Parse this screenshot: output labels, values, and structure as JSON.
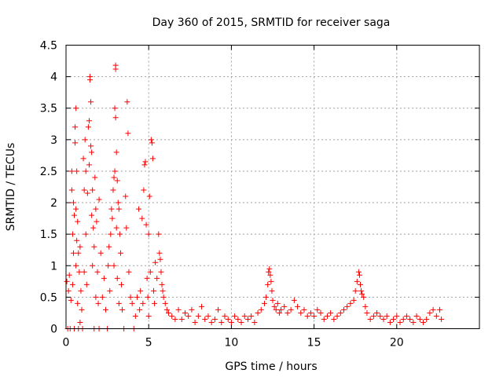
{
  "chart_data": {
    "type": "scatter",
    "title": "Day 360 of 2015, SRMTID for receiver saga",
    "xlabel": "GPS time / hours",
    "ylabel": "SRMTID / TECUs",
    "xlim": [
      0,
      25
    ],
    "ylim": [
      0,
      4.5
    ],
    "x_ticks": [
      0,
      5,
      10,
      15,
      20
    ],
    "x_tick_labels": [
      "0",
      "5",
      "10",
      "15",
      "20"
    ],
    "y_ticks": [
      0,
      0.5,
      1,
      1.5,
      2,
      2.5,
      3,
      3.5,
      4,
      4.5
    ],
    "y_tick_labels": [
      "0",
      "0.5",
      "1",
      "1.5",
      "2",
      "2.5",
      "3",
      "3.5",
      "4",
      "4.5"
    ],
    "grid": true,
    "marker": "+",
    "series": [
      {
        "name": "SRMTID",
        "color": "#ff0000",
        "points": [
          [
            0.05,
            0.75
          ],
          [
            0.1,
            0.0
          ],
          [
            0.15,
            0.6
          ],
          [
            0.2,
            0.85
          ],
          [
            0.25,
            0.0
          ],
          [
            0.3,
            0.45
          ],
          [
            0.35,
            2.5
          ],
          [
            0.35,
            2.2
          ],
          [
            0.4,
            1.5
          ],
          [
            0.4,
            0.7
          ],
          [
            0.45,
            2.0
          ],
          [
            0.45,
            1.2
          ],
          [
            0.5,
            1.8
          ],
          [
            0.5,
            0.0
          ],
          [
            0.55,
            3.2
          ],
          [
            0.55,
            2.95
          ],
          [
            0.6,
            3.5
          ],
          [
            0.6,
            1.9
          ],
          [
            0.6,
            1.0
          ],
          [
            0.65,
            2.5
          ],
          [
            0.65,
            1.4
          ],
          [
            0.7,
            1.7
          ],
          [
            0.7,
            0.4
          ],
          [
            0.75,
            1.2
          ],
          [
            0.75,
            0.0
          ],
          [
            0.8,
            0.9
          ],
          [
            0.85,
            1.3
          ],
          [
            0.85,
            0.1
          ],
          [
            0.9,
            0.6
          ],
          [
            0.95,
            0.3
          ],
          [
            1.0,
            0.0
          ],
          [
            1.05,
            2.7
          ],
          [
            1.1,
            2.2
          ],
          [
            1.1,
            0.9
          ],
          [
            1.15,
            3.0
          ],
          [
            1.2,
            2.5
          ],
          [
            1.2,
            1.5
          ],
          [
            1.25,
            0.7
          ],
          [
            1.3,
            2.15
          ],
          [
            1.35,
            3.2
          ],
          [
            1.4,
            3.3
          ],
          [
            1.4,
            2.6
          ],
          [
            1.45,
            4.0
          ],
          [
            1.45,
            3.95
          ],
          [
            1.5,
            3.6
          ],
          [
            1.5,
            2.9
          ],
          [
            1.55,
            2.8
          ],
          [
            1.55,
            1.8
          ],
          [
            1.6,
            2.2
          ],
          [
            1.6,
            1.0
          ],
          [
            1.65,
            1.6
          ],
          [
            1.7,
            1.3
          ],
          [
            1.7,
            0.0
          ],
          [
            1.75,
            2.4
          ],
          [
            1.8,
            1.9
          ],
          [
            1.8,
            0.5
          ],
          [
            1.85,
            1.7
          ],
          [
            1.9,
            0.9
          ],
          [
            1.95,
            0.4
          ],
          [
            2.0,
            2.05
          ],
          [
            2.0,
            0.0
          ],
          [
            2.1,
            1.2
          ],
          [
            2.2,
            0.5
          ],
          [
            2.3,
            0.8
          ],
          [
            2.4,
            0.3
          ],
          [
            2.5,
            0.0
          ],
          [
            2.55,
            1.0
          ],
          [
            2.6,
            1.3
          ],
          [
            2.65,
            0.6
          ],
          [
            2.7,
            1.5
          ],
          [
            2.75,
            1.9
          ],
          [
            2.8,
            1.75
          ],
          [
            2.85,
            2.2
          ],
          [
            2.9,
            2.4
          ],
          [
            2.9,
            1.0
          ],
          [
            2.95,
            2.5
          ],
          [
            2.95,
            3.5
          ],
          [
            3.0,
            4.18
          ],
          [
            3.0,
            4.12
          ],
          [
            3.0,
            3.35
          ],
          [
            3.05,
            2.8
          ],
          [
            3.05,
            1.6
          ],
          [
            3.1,
            2.35
          ],
          [
            3.1,
            0.8
          ],
          [
            3.15,
            2.0
          ],
          [
            3.2,
            1.9
          ],
          [
            3.2,
            0.4
          ],
          [
            3.25,
            1.5
          ],
          [
            3.3,
            1.2
          ],
          [
            3.35,
            0.7
          ],
          [
            3.4,
            0.3
          ],
          [
            3.5,
            0.0
          ],
          [
            3.6,
            2.1
          ],
          [
            3.65,
            1.6
          ],
          [
            3.7,
            3.6
          ],
          [
            3.75,
            3.1
          ],
          [
            3.8,
            0.9
          ],
          [
            3.9,
            0.5
          ],
          [
            4.0,
            0.4
          ],
          [
            4.1,
            0.0
          ],
          [
            4.2,
            0.2
          ],
          [
            4.3,
            0.5
          ],
          [
            4.4,
            1.9
          ],
          [
            4.45,
            0.3
          ],
          [
            4.5,
            0.6
          ],
          [
            4.6,
            1.75
          ],
          [
            4.65,
            0.4
          ],
          [
            4.7,
            2.2
          ],
          [
            4.75,
            2.6
          ],
          [
            4.8,
            2.65
          ],
          [
            4.85,
            1.65
          ],
          [
            4.9,
            0.8
          ],
          [
            4.95,
            0.5
          ],
          [
            5.0,
            1.5
          ],
          [
            5.0,
            0.2
          ],
          [
            5.05,
            2.1
          ],
          [
            5.1,
            0.9
          ],
          [
            5.15,
            3.0
          ],
          [
            5.2,
            2.95
          ],
          [
            5.25,
            2.7
          ],
          [
            5.3,
            0.6
          ],
          [
            5.35,
            0.4
          ],
          [
            5.4,
            1.05
          ],
          [
            5.5,
            0.8
          ],
          [
            5.6,
            1.5
          ],
          [
            5.65,
            1.2
          ],
          [
            5.7,
            1.1
          ],
          [
            5.75,
            0.9
          ],
          [
            5.8,
            0.7
          ],
          [
            5.85,
            0.6
          ],
          [
            5.9,
            0.5
          ],
          [
            6.0,
            0.4
          ],
          [
            6.1,
            0.3
          ],
          [
            6.2,
            0.25
          ],
          [
            6.4,
            0.2
          ],
          [
            6.6,
            0.15
          ],
          [
            6.8,
            0.3
          ],
          [
            7.0,
            0.15
          ],
          [
            7.2,
            0.25
          ],
          [
            7.4,
            0.2
          ],
          [
            7.6,
            0.3
          ],
          [
            7.8,
            0.1
          ],
          [
            8.0,
            0.2
          ],
          [
            8.2,
            0.35
          ],
          [
            8.4,
            0.15
          ],
          [
            8.6,
            0.2
          ],
          [
            8.8,
            0.1
          ],
          [
            9.0,
            0.15
          ],
          [
            9.2,
            0.3
          ],
          [
            9.4,
            0.1
          ],
          [
            9.6,
            0.2
          ],
          [
            9.8,
            0.15
          ],
          [
            10.0,
            0.1
          ],
          [
            10.2,
            0.2
          ],
          [
            10.4,
            0.15
          ],
          [
            10.6,
            0.1
          ],
          [
            10.8,
            0.2
          ],
          [
            11.0,
            0.15
          ],
          [
            11.2,
            0.2
          ],
          [
            11.4,
            0.1
          ],
          [
            11.6,
            0.25
          ],
          [
            11.8,
            0.3
          ],
          [
            12.0,
            0.4
          ],
          [
            12.1,
            0.5
          ],
          [
            12.2,
            0.7
          ],
          [
            12.25,
            0.9
          ],
          [
            12.3,
            0.95
          ],
          [
            12.35,
            0.85
          ],
          [
            12.4,
            0.75
          ],
          [
            12.45,
            0.6
          ],
          [
            12.5,
            0.45
          ],
          [
            12.6,
            0.35
          ],
          [
            12.7,
            0.3
          ],
          [
            12.8,
            0.4
          ],
          [
            12.9,
            0.25
          ],
          [
            13.0,
            0.3
          ],
          [
            13.2,
            0.35
          ],
          [
            13.4,
            0.25
          ],
          [
            13.6,
            0.3
          ],
          [
            13.8,
            0.45
          ],
          [
            14.0,
            0.35
          ],
          [
            14.2,
            0.25
          ],
          [
            14.4,
            0.3
          ],
          [
            14.6,
            0.2
          ],
          [
            14.8,
            0.25
          ],
          [
            15.0,
            0.2
          ],
          [
            15.2,
            0.3
          ],
          [
            15.4,
            0.25
          ],
          [
            15.6,
            0.15
          ],
          [
            15.8,
            0.2
          ],
          [
            16.0,
            0.25
          ],
          [
            16.2,
            0.15
          ],
          [
            16.4,
            0.2
          ],
          [
            16.6,
            0.25
          ],
          [
            16.8,
            0.3
          ],
          [
            17.0,
            0.35
          ],
          [
            17.2,
            0.4
          ],
          [
            17.4,
            0.45
          ],
          [
            17.5,
            0.6
          ],
          [
            17.6,
            0.75
          ],
          [
            17.7,
            0.9
          ],
          [
            17.75,
            0.85
          ],
          [
            17.8,
            0.7
          ],
          [
            17.85,
            0.6
          ],
          [
            17.9,
            0.55
          ],
          [
            18.0,
            0.5
          ],
          [
            18.1,
            0.35
          ],
          [
            18.2,
            0.25
          ],
          [
            18.4,
            0.15
          ],
          [
            18.6,
            0.2
          ],
          [
            18.8,
            0.25
          ],
          [
            19.0,
            0.2
          ],
          [
            19.2,
            0.15
          ],
          [
            19.4,
            0.2
          ],
          [
            19.6,
            0.1
          ],
          [
            19.8,
            0.15
          ],
          [
            20.0,
            0.2
          ],
          [
            20.2,
            0.1
          ],
          [
            20.4,
            0.15
          ],
          [
            20.6,
            0.2
          ],
          [
            20.8,
            0.15
          ],
          [
            21.0,
            0.1
          ],
          [
            21.2,
            0.2
          ],
          [
            21.4,
            0.15
          ],
          [
            21.6,
            0.1
          ],
          [
            21.8,
            0.15
          ],
          [
            22.0,
            0.25
          ],
          [
            22.2,
            0.3
          ],
          [
            22.4,
            0.2
          ],
          [
            22.6,
            0.3
          ],
          [
            22.7,
            0.15
          ]
        ]
      }
    ]
  }
}
